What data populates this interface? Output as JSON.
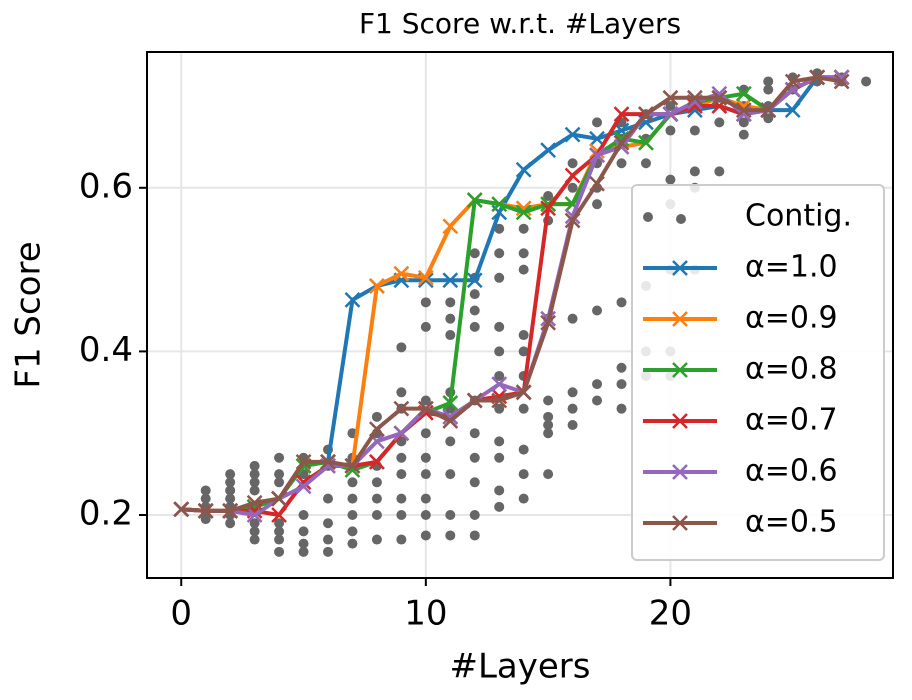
{
  "chart_data": {
    "type": "line",
    "title": "F1 Score w.r.t. #Layers",
    "xlabel": "#Layers",
    "ylabel": "F1 Score",
    "xlim": [
      -1.4,
      29.1
    ],
    "xticks": [
      0,
      10,
      20
    ],
    "ylim": [
      0.123,
      0.766
    ],
    "yticks": [
      0.2,
      0.4,
      0.6
    ],
    "grid": true,
    "legend": "lower right",
    "x": [
      0,
      1,
      2,
      3,
      4,
      5,
      6,
      7,
      8,
      9,
      10,
      11,
      12,
      13,
      14,
      15,
      16,
      17,
      18,
      19,
      20,
      21,
      22,
      23,
      24,
      25,
      26,
      27
    ],
    "series": [
      {
        "name": "Contig.",
        "type": "scatter",
        "color": "#666666",
        "x": [
          1,
          1,
          1,
          1,
          1,
          2,
          2,
          2,
          2,
          2,
          2,
          2,
          3,
          3,
          3,
          3,
          3,
          3,
          3,
          4,
          4,
          4,
          4,
          4,
          4,
          4,
          5,
          5,
          5,
          5,
          5,
          5,
          6,
          6,
          6,
          6,
          6,
          6,
          7,
          7,
          7,
          7,
          7,
          7,
          7,
          8,
          8,
          8,
          8,
          8,
          8,
          8,
          9,
          9,
          9,
          9,
          9,
          9,
          9,
          9,
          9,
          10,
          10,
          10,
          10,
          10,
          10,
          10,
          10,
          10,
          11,
          11,
          11,
          11,
          11,
          11,
          11,
          11,
          11,
          12,
          12,
          12,
          12,
          12,
          12,
          12,
          12,
          12,
          12,
          12,
          13,
          13,
          13,
          13,
          13,
          13,
          13,
          13,
          13,
          13,
          13,
          14,
          14,
          14,
          14,
          14,
          14,
          14,
          14,
          14,
          14,
          15,
          15,
          15,
          15,
          15,
          15,
          15,
          15,
          16,
          16,
          16,
          16,
          16,
          16,
          17,
          17,
          17,
          17,
          17,
          17,
          17,
          18,
          18,
          18,
          18,
          18,
          18,
          18,
          19,
          19,
          19,
          19,
          19,
          19,
          20,
          20,
          20,
          20,
          20,
          20,
          20,
          21,
          21,
          21,
          21,
          21,
          22,
          22,
          22,
          23,
          23,
          23,
          23,
          24,
          24,
          24,
          24,
          25,
          25,
          26,
          26,
          27,
          27,
          28
        ],
        "values": [
          0.23,
          0.22,
          0.21,
          0.2,
          0.195,
          0.25,
          0.24,
          0.23,
          0.22,
          0.21,
          0.2,
          0.19,
          0.26,
          0.25,
          0.24,
          0.23,
          0.19,
          0.18,
          0.17,
          0.27,
          0.25,
          0.24,
          0.19,
          0.18,
          0.17,
          0.155,
          0.27,
          0.25,
          0.2,
          0.18,
          0.165,
          0.155,
          0.28,
          0.26,
          0.22,
          0.19,
          0.17,
          0.155,
          0.3,
          0.27,
          0.24,
          0.22,
          0.2,
          0.18,
          0.165,
          0.32,
          0.3,
          0.26,
          0.24,
          0.22,
          0.2,
          0.17,
          0.405,
          0.35,
          0.33,
          0.29,
          0.27,
          0.25,
          0.22,
          0.2,
          0.17,
          0.46,
          0.43,
          0.34,
          0.3,
          0.27,
          0.25,
          0.22,
          0.2,
          0.175,
          0.46,
          0.44,
          0.42,
          0.35,
          0.33,
          0.29,
          0.25,
          0.2,
          0.175,
          0.52,
          0.49,
          0.47,
          0.45,
          0.43,
          0.34,
          0.3,
          0.27,
          0.24,
          0.2,
          0.175,
          0.55,
          0.52,
          0.49,
          0.43,
          0.4,
          0.37,
          0.33,
          0.29,
          0.27,
          0.23,
          0.21,
          0.55,
          0.52,
          0.5,
          0.42,
          0.4,
          0.37,
          0.33,
          0.28,
          0.25,
          0.22,
          0.59,
          0.56,
          0.44,
          0.34,
          0.32,
          0.31,
          0.3,
          0.25,
          0.63,
          0.6,
          0.44,
          0.35,
          0.33,
          0.31,
          0.68,
          0.63,
          0.6,
          0.58,
          0.45,
          0.36,
          0.34,
          0.68,
          0.66,
          0.63,
          0.46,
          0.38,
          0.36,
          0.33,
          0.69,
          0.66,
          0.63,
          0.48,
          0.4,
          0.37,
          0.7,
          0.67,
          0.61,
          0.58,
          0.5,
          0.4,
          0.37,
          0.7,
          0.67,
          0.62,
          0.6,
          0.5,
          0.71,
          0.68,
          0.62,
          0.72,
          0.7,
          0.68,
          0.665,
          0.73,
          0.72,
          0.7,
          0.685,
          0.735,
          0.72,
          0.74,
          0.73,
          0.735,
          0.73,
          0.73
        ]
      },
      {
        "name": "α=1.0",
        "color": "#1f77b4",
        "values": [
          0.207,
          0.205,
          0.205,
          0.21,
          0.22,
          0.26,
          0.265,
          0.463,
          0.48,
          0.487,
          0.487,
          0.487,
          0.487,
          0.57,
          0.622,
          0.646,
          0.665,
          0.66,
          0.67,
          0.68,
          0.69,
          0.695,
          0.7,
          0.69,
          0.695,
          0.695,
          0.735,
          0.735
        ]
      },
      {
        "name": "α=0.9",
        "color": "#ff7f0e",
        "values": [
          0.207,
          0.205,
          0.205,
          0.21,
          0.22,
          0.26,
          0.265,
          0.26,
          0.48,
          0.495,
          0.49,
          0.553,
          0.585,
          0.58,
          0.575,
          0.58,
          0.58,
          0.645,
          0.65,
          0.655,
          0.69,
          0.7,
          0.71,
          0.7,
          0.695,
          0.72,
          0.735,
          0.735
        ]
      },
      {
        "name": "α=0.8",
        "color": "#2ca02c",
        "values": [
          0.207,
          0.205,
          0.205,
          0.21,
          0.22,
          0.26,
          0.265,
          0.255,
          0.265,
          0.3,
          0.325,
          0.337,
          0.585,
          0.58,
          0.57,
          0.58,
          0.58,
          0.64,
          0.66,
          0.655,
          0.69,
          0.705,
          0.71,
          0.715,
          0.695,
          0.72,
          0.735,
          0.735
        ]
      },
      {
        "name": "α=0.7",
        "color": "#d62728",
        "values": [
          0.207,
          0.205,
          0.205,
          0.205,
          0.2,
          0.24,
          0.26,
          0.26,
          0.265,
          0.3,
          0.325,
          0.32,
          0.34,
          0.345,
          0.35,
          0.575,
          0.615,
          0.64,
          0.69,
          0.69,
          0.69,
          0.7,
          0.7,
          0.69,
          0.695,
          0.72,
          0.735,
          0.735
        ]
      },
      {
        "name": "α=0.6",
        "color": "#9467bd",
        "values": [
          0.207,
          0.205,
          0.205,
          0.2,
          0.22,
          0.235,
          0.26,
          0.26,
          0.29,
          0.3,
          0.33,
          0.32,
          0.34,
          0.36,
          0.35,
          0.44,
          0.565,
          0.64,
          0.65,
          0.69,
          0.69,
          0.705,
          0.715,
          0.69,
          0.695,
          0.72,
          0.735,
          0.735
        ]
      },
      {
        "name": "α=0.5",
        "color": "#8c564b",
        "values": [
          0.207,
          0.205,
          0.205,
          0.215,
          0.22,
          0.265,
          0.265,
          0.26,
          0.305,
          0.33,
          0.33,
          0.315,
          0.34,
          0.34,
          0.35,
          0.435,
          0.56,
          0.605,
          0.655,
          0.69,
          0.71,
          0.71,
          0.71,
          0.695,
          0.695,
          0.73,
          0.735,
          0.73
        ]
      }
    ]
  }
}
